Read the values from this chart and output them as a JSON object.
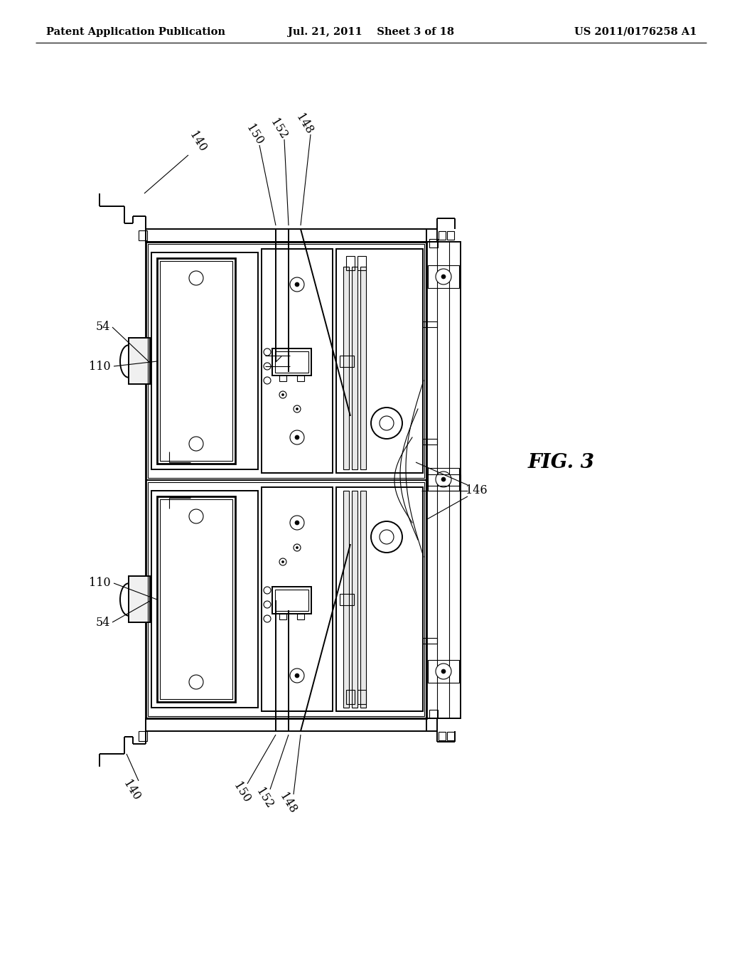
{
  "bg_color": "#ffffff",
  "header_left": "Patent Application Publication",
  "header_center": "Jul. 21, 2011  Sheet 3 of 18",
  "header_right": "US 2011/0176258 A1",
  "fig_label": "FIG. 3",
  "header_fontsize": 10.5,
  "label_fontsize": 11.5,
  "fig_fontsize": 20
}
